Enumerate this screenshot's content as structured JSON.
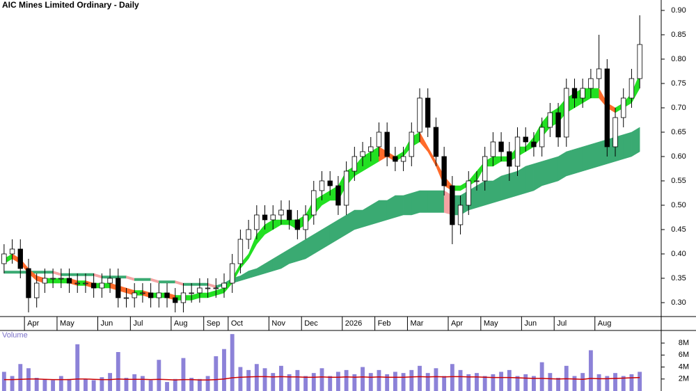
{
  "chart_data": [
    {
      "type": "candlestick",
      "title": "AIC Mines Limited Ordinary - Daily",
      "categories": [
        null,
        null,
        null,
        "Apr",
        null,
        null,
        null,
        "May",
        null,
        null,
        null,
        null,
        "Jun",
        null,
        null,
        null,
        "Jul",
        null,
        null,
        null,
        null,
        "Aug",
        null,
        null,
        null,
        "Sep",
        null,
        null,
        "Oct",
        null,
        null,
        null,
        null,
        "Nov",
        null,
        null,
        null,
        "Dec",
        null,
        null,
        null,
        null,
        "2026",
        null,
        null,
        null,
        "Feb",
        null,
        null,
        null,
        "Mar",
        null,
        null,
        null,
        null,
        "Apr",
        null,
        null,
        null,
        "May",
        null,
        null,
        null,
        null,
        "Jun",
        null,
        null,
        null,
        "Jul",
        null,
        null,
        null,
        null,
        "Aug",
        null,
        null,
        null,
        null,
        null
      ],
      "open": [
        0.38,
        0.4,
        0.41,
        0.37,
        0.31,
        0.34,
        0.35,
        0.35,
        0.35,
        0.34,
        0.34,
        0.34,
        0.33,
        0.34,
        0.35,
        0.31,
        0.31,
        0.32,
        0.32,
        0.31,
        0.32,
        0.31,
        0.3,
        0.32,
        0.32,
        0.33,
        0.33,
        0.33,
        0.34,
        0.38,
        0.43,
        0.45,
        0.48,
        0.47,
        0.48,
        0.49,
        0.47,
        0.45,
        0.48,
        0.53,
        0.55,
        0.54,
        0.5,
        0.57,
        0.6,
        0.61,
        0.62,
        0.65,
        0.6,
        0.59,
        0.6,
        0.65,
        0.72,
        0.66,
        0.6,
        0.54,
        0.46,
        0.5,
        0.55,
        0.55,
        0.6,
        0.63,
        0.61,
        0.58,
        0.64,
        0.63,
        0.62,
        0.66,
        0.69,
        0.64,
        0.74,
        0.72,
        0.74,
        0.76,
        0.78,
        0.62,
        0.68,
        0.72,
        0.76
      ],
      "high": [
        0.42,
        0.43,
        0.43,
        0.39,
        0.36,
        0.37,
        0.37,
        0.37,
        0.37,
        0.36,
        0.36,
        0.36,
        0.36,
        0.37,
        0.37,
        0.33,
        0.34,
        0.34,
        0.34,
        0.34,
        0.34,
        0.33,
        0.34,
        0.34,
        0.35,
        0.35,
        0.35,
        0.36,
        0.4,
        0.45,
        0.47,
        0.5,
        0.5,
        0.5,
        0.51,
        0.51,
        0.49,
        0.5,
        0.55,
        0.57,
        0.57,
        0.56,
        0.59,
        0.62,
        0.63,
        0.64,
        0.67,
        0.67,
        0.62,
        0.62,
        0.67,
        0.74,
        0.74,
        0.68,
        0.62,
        0.56,
        0.52,
        0.57,
        0.57,
        0.62,
        0.65,
        0.65,
        0.63,
        0.66,
        0.66,
        0.65,
        0.68,
        0.71,
        0.71,
        0.76,
        0.76,
        0.76,
        0.78,
        0.85,
        0.8,
        0.7,
        0.74,
        0.78,
        0.89
      ],
      "low": [
        0.36,
        0.38,
        0.35,
        0.28,
        0.29,
        0.32,
        0.33,
        0.33,
        0.32,
        0.32,
        0.32,
        0.31,
        0.31,
        0.32,
        0.29,
        0.29,
        0.29,
        0.3,
        0.29,
        0.29,
        0.29,
        0.28,
        0.28,
        0.3,
        0.3,
        0.31,
        0.31,
        0.31,
        0.32,
        0.36,
        0.41,
        0.43,
        0.45,
        0.45,
        0.46,
        0.45,
        0.43,
        0.43,
        0.46,
        0.51,
        0.52,
        0.48,
        0.48,
        0.55,
        0.58,
        0.59,
        0.6,
        0.58,
        0.57,
        0.57,
        0.58,
        0.63,
        0.64,
        0.58,
        0.52,
        0.42,
        0.44,
        0.48,
        0.53,
        0.53,
        0.58,
        0.59,
        0.55,
        0.56,
        0.61,
        0.6,
        0.6,
        0.64,
        0.62,
        0.62,
        0.7,
        0.7,
        0.72,
        0.74,
        0.6,
        0.6,
        0.66,
        0.7,
        0.74
      ],
      "close": [
        0.4,
        0.41,
        0.37,
        0.31,
        0.34,
        0.35,
        0.35,
        0.35,
        0.34,
        0.34,
        0.34,
        0.33,
        0.34,
        0.35,
        0.31,
        0.31,
        0.32,
        0.32,
        0.31,
        0.32,
        0.31,
        0.3,
        0.32,
        0.32,
        0.33,
        0.33,
        0.33,
        0.34,
        0.38,
        0.43,
        0.45,
        0.48,
        0.47,
        0.48,
        0.49,
        0.47,
        0.45,
        0.48,
        0.53,
        0.55,
        0.54,
        0.5,
        0.57,
        0.6,
        0.61,
        0.62,
        0.65,
        0.6,
        0.59,
        0.6,
        0.65,
        0.72,
        0.66,
        0.6,
        0.54,
        0.46,
        0.5,
        0.55,
        0.55,
        0.6,
        0.63,
        0.61,
        0.58,
        0.64,
        0.63,
        0.62,
        0.66,
        0.69,
        0.64,
        0.74,
        0.72,
        0.74,
        0.76,
        0.78,
        0.62,
        0.68,
        0.72,
        0.76,
        0.83
      ],
      "body_up_color": "#ffffff",
      "body_down_color": "#000000",
      "ribbons": [
        {
          "up_color": "#3aaa72",
          "down_color": "#f4a3a3",
          "upper": [
            0.365,
            0.365,
            0.365,
            0.365,
            0.365,
            0.365,
            0.365,
            0.36,
            0.36,
            0.36,
            0.36,
            0.36,
            0.355,
            0.355,
            0.355,
            0.355,
            0.35,
            0.35,
            0.35,
            0.345,
            0.345,
            0.345,
            0.34,
            0.34,
            0.34,
            0.34,
            0.335,
            0.34,
            0.35,
            0.355,
            0.365,
            0.37,
            0.38,
            0.39,
            0.4,
            0.41,
            0.42,
            0.43,
            0.44,
            0.45,
            0.46,
            0.47,
            0.48,
            0.49,
            0.49,
            0.5,
            0.51,
            0.51,
            0.52,
            0.52,
            0.525,
            0.53,
            0.53,
            0.53,
            0.53,
            0.52,
            0.52,
            0.53,
            0.54,
            0.55,
            0.55,
            0.56,
            0.565,
            0.57,
            0.58,
            0.585,
            0.59,
            0.595,
            0.6,
            0.61,
            0.615,
            0.62,
            0.625,
            0.63,
            0.635,
            0.64,
            0.645,
            0.65,
            0.66
          ],
          "lower": [
            0.36,
            0.36,
            0.36,
            0.36,
            0.36,
            0.36,
            0.36,
            0.355,
            0.355,
            0.355,
            0.355,
            0.355,
            0.35,
            0.35,
            0.35,
            0.35,
            0.345,
            0.345,
            0.345,
            0.34,
            0.34,
            0.34,
            0.335,
            0.335,
            0.335,
            0.335,
            0.33,
            0.335,
            0.34,
            0.345,
            0.35,
            0.355,
            0.36,
            0.365,
            0.37,
            0.38,
            0.385,
            0.39,
            0.4,
            0.41,
            0.42,
            0.43,
            0.44,
            0.45,
            0.455,
            0.46,
            0.465,
            0.47,
            0.475,
            0.48,
            0.48,
            0.485,
            0.485,
            0.485,
            0.485,
            0.48,
            0.48,
            0.49,
            0.495,
            0.5,
            0.505,
            0.51,
            0.515,
            0.52,
            0.525,
            0.53,
            0.54,
            0.545,
            0.55,
            0.56,
            0.565,
            0.57,
            0.575,
            0.58,
            0.585,
            0.59,
            0.595,
            0.6,
            0.61
          ]
        },
        {
          "up_color": "#22e022",
          "down_color": "#ff6a2a",
          "upper": [
            0.39,
            0.4,
            0.39,
            0.37,
            0.355,
            0.35,
            0.35,
            0.35,
            0.35,
            0.345,
            0.345,
            0.34,
            0.34,
            0.34,
            0.335,
            0.33,
            0.325,
            0.325,
            0.32,
            0.32,
            0.32,
            0.315,
            0.315,
            0.315,
            0.32,
            0.32,
            0.325,
            0.33,
            0.35,
            0.38,
            0.4,
            0.44,
            0.46,
            0.47,
            0.47,
            0.47,
            0.47,
            0.48,
            0.51,
            0.52,
            0.53,
            0.54,
            0.57,
            0.58,
            0.6,
            0.61,
            0.62,
            0.61,
            0.6,
            0.61,
            0.64,
            0.65,
            0.62,
            0.59,
            0.56,
            0.54,
            0.54,
            0.55,
            0.57,
            0.59,
            0.6,
            0.6,
            0.6,
            0.62,
            0.62,
            0.64,
            0.67,
            0.69,
            0.7,
            0.72,
            0.73,
            0.74,
            0.74,
            0.74,
            0.71,
            0.7,
            0.71,
            0.73,
            0.77
          ],
          "lower": [
            0.38,
            0.39,
            0.38,
            0.36,
            0.345,
            0.34,
            0.34,
            0.34,
            0.34,
            0.335,
            0.335,
            0.33,
            0.33,
            0.33,
            0.325,
            0.32,
            0.315,
            0.315,
            0.31,
            0.31,
            0.31,
            0.305,
            0.305,
            0.305,
            0.31,
            0.31,
            0.315,
            0.32,
            0.34,
            0.37,
            0.39,
            0.42,
            0.44,
            0.45,
            0.46,
            0.46,
            0.45,
            0.46,
            0.48,
            0.5,
            0.51,
            0.51,
            0.54,
            0.56,
            0.57,
            0.58,
            0.59,
            0.6,
            0.59,
            0.6,
            0.62,
            0.63,
            0.61,
            0.58,
            0.54,
            0.53,
            0.53,
            0.54,
            0.55,
            0.58,
            0.58,
            0.59,
            0.59,
            0.6,
            0.61,
            0.62,
            0.64,
            0.66,
            0.67,
            0.69,
            0.7,
            0.71,
            0.72,
            0.72,
            0.7,
            0.69,
            0.7,
            0.71,
            0.74
          ]
        }
      ],
      "ylim": [
        0.2714,
        0.9214
      ],
      "yticks": [
        {
          "value": 0.3,
          "label": "0.30"
        },
        {
          "value": 0.35,
          "label": "0.35"
        },
        {
          "value": 0.4,
          "label": "0.40"
        },
        {
          "value": 0.45,
          "label": "0.45"
        },
        {
          "value": 0.5,
          "label": "0.50"
        },
        {
          "value": 0.55,
          "label": "0.55"
        },
        {
          "value": 0.6,
          "label": "0.60"
        },
        {
          "value": 0.65,
          "label": "0.65"
        },
        {
          "value": 0.7,
          "label": "0.70"
        },
        {
          "value": 0.75,
          "label": "0.75"
        },
        {
          "value": 0.8,
          "label": "0.80"
        },
        {
          "value": 0.85,
          "label": "0.85"
        },
        {
          "value": 0.9,
          "label": "0.90"
        }
      ]
    },
    {
      "type": "bar",
      "title": "Volume",
      "color": "#8c82d8",
      "values": [
        3200000,
        2500000,
        4500000,
        3800000,
        2200000,
        2000000,
        1800000,
        2500000,
        2000000,
        7800000,
        2000000,
        1800000,
        2300000,
        3000000,
        6500000,
        2200000,
        2800000,
        2500000,
        1800000,
        5200000,
        1500000,
        2000000,
        5500000,
        2200000,
        2000000,
        2500000,
        5800000,
        7000000,
        9500000,
        4000000,
        3500000,
        4500000,
        3800000,
        3000000,
        4200000,
        2800000,
        3500000,
        2500000,
        3000000,
        3800000,
        2500000,
        3200000,
        3500000,
        2800000,
        4000000,
        3000000,
        3500000,
        2800000,
        3200000,
        3000000,
        3500000,
        4200000,
        3000000,
        3800000,
        2500000,
        4500000,
        3500000,
        2800000,
        3000000,
        2500000,
        2800000,
        3200000,
        3500000,
        2500000,
        2800000,
        2500000,
        4800000,
        3000000,
        2200000,
        4200000,
        2500000,
        3000000,
        6800000,
        2800000,
        2500000,
        3000000,
        2500000,
        2800000,
        3200000
      ],
      "average": {
        "color": "#cc0000",
        "values": [
          1900000,
          1900000,
          1950000,
          2000000,
          2000000,
          1950000,
          1900000,
          1900000,
          1900000,
          2000000,
          2000000,
          1950000,
          1900000,
          1900000,
          2000000,
          1950000,
          1950000,
          1950000,
          1900000,
          1950000,
          1900000,
          1850000,
          1900000,
          1900000,
          1850000,
          1850000,
          1900000,
          2000000,
          2200000,
          2300000,
          2350000,
          2400000,
          2400000,
          2350000,
          2400000,
          2350000,
          2350000,
          2300000,
          2300000,
          2350000,
          2300000,
          2300000,
          2350000,
          2300000,
          2350000,
          2300000,
          2350000,
          2300000,
          2300000,
          2300000,
          2350000,
          2400000,
          2350000,
          2400000,
          2350000,
          2400000,
          2400000,
          2350000,
          2350000,
          2300000,
          2250000,
          2250000,
          2250000,
          2200000,
          2150000,
          2100000,
          2100000,
          2050000,
          2000000,
          2050000,
          2000000,
          1950000,
          2100000,
          2050000,
          2050000,
          2100000,
          2150000,
          2200000,
          2250000
        ]
      },
      "ylim": [
        0,
        10100000
      ],
      "yticks": [
        {
          "value": 2000000,
          "label": "2M"
        },
        {
          "value": 4000000,
          "label": "4M"
        },
        {
          "value": 6000000,
          "label": "6M"
        },
        {
          "value": 8000000,
          "label": "8M"
        }
      ]
    }
  ]
}
